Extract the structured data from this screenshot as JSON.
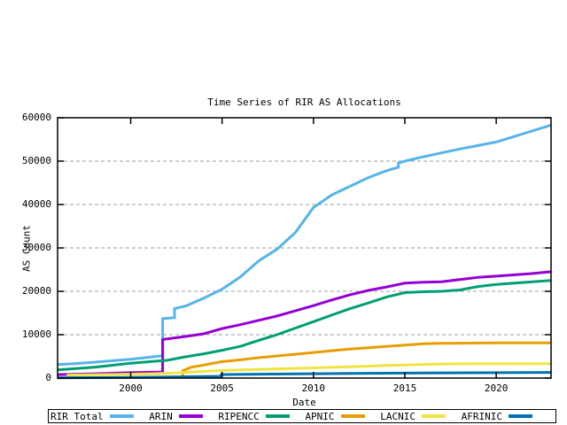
{
  "window": {
    "background": "#ffffff"
  },
  "chart_data": {
    "type": "line",
    "title": "Time Series of RIR AS Allocations",
    "xlabel": "Date",
    "ylabel": "AS Count",
    "xlim": [
      1996,
      2023
    ],
    "ylim": [
      0,
      60000
    ],
    "xticks": [
      2000,
      2005,
      2010,
      2015,
      2020
    ],
    "yticks": [
      0,
      10000,
      20000,
      30000,
      40000,
      50000,
      60000
    ],
    "grid": "horizontal-dashed-at-yticks-10000-to-50000",
    "legend_position": "bottom-outside-boxed",
    "series": [
      {
        "name": "RIR Total",
        "color": "#56B4E9",
        "points": [
          [
            1996,
            3100
          ],
          [
            1997,
            3350
          ],
          [
            1998,
            3650
          ],
          [
            1999,
            4000
          ],
          [
            2000,
            4350
          ],
          [
            2001,
            4800
          ],
          [
            2001.75,
            5150
          ],
          [
            2001.75,
            13700
          ],
          [
            2002.4,
            13900
          ],
          [
            2002.4,
            16000
          ],
          [
            2003,
            16600
          ],
          [
            2004,
            18400
          ],
          [
            2005,
            20500
          ],
          [
            2006,
            23300
          ],
          [
            2007,
            27000
          ],
          [
            2008,
            29700
          ],
          [
            2009,
            33500
          ],
          [
            2010,
            39300
          ],
          [
            2011,
            42200
          ],
          [
            2012,
            44200
          ],
          [
            2013,
            46200
          ],
          [
            2014,
            47800
          ],
          [
            2014.65,
            48600
          ],
          [
            2014.65,
            49600
          ],
          [
            2015,
            50000
          ],
          [
            2016,
            51000
          ],
          [
            2017,
            51900
          ],
          [
            2018,
            52800
          ],
          [
            2019,
            53600
          ],
          [
            2020,
            54400
          ],
          [
            2021,
            55700
          ],
          [
            2022,
            57000
          ],
          [
            2023,
            58300
          ]
        ]
      },
      {
        "name": "ARIN",
        "color": "#9400D3",
        "points": [
          [
            1996,
            800
          ],
          [
            1998,
            1000
          ],
          [
            2000,
            1250
          ],
          [
            2001.75,
            1400
          ],
          [
            2001.75,
            8900
          ],
          [
            2003,
            9600
          ],
          [
            2004,
            10200
          ],
          [
            2005,
            11400
          ],
          [
            2006,
            12300
          ],
          [
            2007,
            13300
          ],
          [
            2008,
            14300
          ],
          [
            2009,
            15500
          ],
          [
            2010,
            16700
          ],
          [
            2011,
            18000
          ],
          [
            2012,
            19200
          ],
          [
            2013,
            20200
          ],
          [
            2014,
            21000
          ],
          [
            2015,
            21900
          ],
          [
            2016,
            22100
          ],
          [
            2017,
            22200
          ],
          [
            2018,
            22700
          ],
          [
            2019,
            23200
          ],
          [
            2020,
            23500
          ],
          [
            2021,
            23800
          ],
          [
            2022,
            24100
          ],
          [
            2023,
            24500
          ]
        ]
      },
      {
        "name": "RIPENCC",
        "color": "#009E73",
        "points": [
          [
            1996,
            1900
          ],
          [
            1998,
            2500
          ],
          [
            2000,
            3400
          ],
          [
            2002,
            4100
          ],
          [
            2003,
            4900
          ],
          [
            2004,
            5600
          ],
          [
            2005,
            6400
          ],
          [
            2006,
            7300
          ],
          [
            2007,
            8700
          ],
          [
            2008,
            10000
          ],
          [
            2009,
            11500
          ],
          [
            2010,
            13000
          ],
          [
            2011,
            14500
          ],
          [
            2012,
            16000
          ],
          [
            2013,
            17300
          ],
          [
            2014,
            18700
          ],
          [
            2015,
            19700
          ],
          [
            2016,
            19900
          ],
          [
            2017,
            20000
          ],
          [
            2018,
            20300
          ],
          [
            2019,
            21100
          ],
          [
            2020,
            21600
          ],
          [
            2021,
            21900
          ],
          [
            2022,
            22200
          ],
          [
            2023,
            22500
          ]
        ]
      },
      {
        "name": "APNIC",
        "color": "#E69F00",
        "points": [
          [
            2002.85,
            0
          ],
          [
            2002.85,
            1700
          ],
          [
            2003.3,
            2500
          ],
          [
            2004,
            3000
          ],
          [
            2005,
            3800
          ],
          [
            2006,
            4200
          ],
          [
            2007,
            4700
          ],
          [
            2008,
            5100
          ],
          [
            2009,
            5500
          ],
          [
            2010,
            5900
          ],
          [
            2011,
            6300
          ],
          [
            2012,
            6700
          ],
          [
            2013,
            7000
          ],
          [
            2014,
            7300
          ],
          [
            2015,
            7600
          ],
          [
            2016,
            7900
          ],
          [
            2017,
            8000
          ],
          [
            2018,
            8050
          ],
          [
            2020,
            8100
          ],
          [
            2023,
            8100
          ]
        ]
      },
      {
        "name": "LACNIC",
        "color": "#F0E442",
        "points": [
          [
            1996.5,
            700
          ],
          [
            1998,
            800
          ],
          [
            2000,
            900
          ],
          [
            2002,
            1100
          ],
          [
            2003,
            1300
          ],
          [
            2005,
            1750
          ],
          [
            2007,
            2000
          ],
          [
            2010,
            2350
          ],
          [
            2012,
            2600
          ],
          [
            2014,
            2900
          ],
          [
            2015,
            3000
          ],
          [
            2016,
            3150
          ],
          [
            2017,
            3250
          ],
          [
            2019,
            3300
          ],
          [
            2023,
            3300
          ]
        ]
      },
      {
        "name": "AFRINIC",
        "color": "#0072B2",
        "points": [
          [
            1996,
            50
          ],
          [
            2000,
            150
          ],
          [
            2002,
            250
          ],
          [
            2004,
            350
          ],
          [
            2004.95,
            400
          ],
          [
            2004.95,
            800
          ],
          [
            2007,
            900
          ],
          [
            2010,
            1000
          ],
          [
            2013,
            1100
          ],
          [
            2016,
            1180
          ],
          [
            2019,
            1230
          ],
          [
            2023,
            1300
          ]
        ]
      }
    ]
  },
  "colors": {
    "axis": "#000000",
    "grid": "#9e9e9e",
    "background": "#ffffff",
    "text": "#000000"
  }
}
